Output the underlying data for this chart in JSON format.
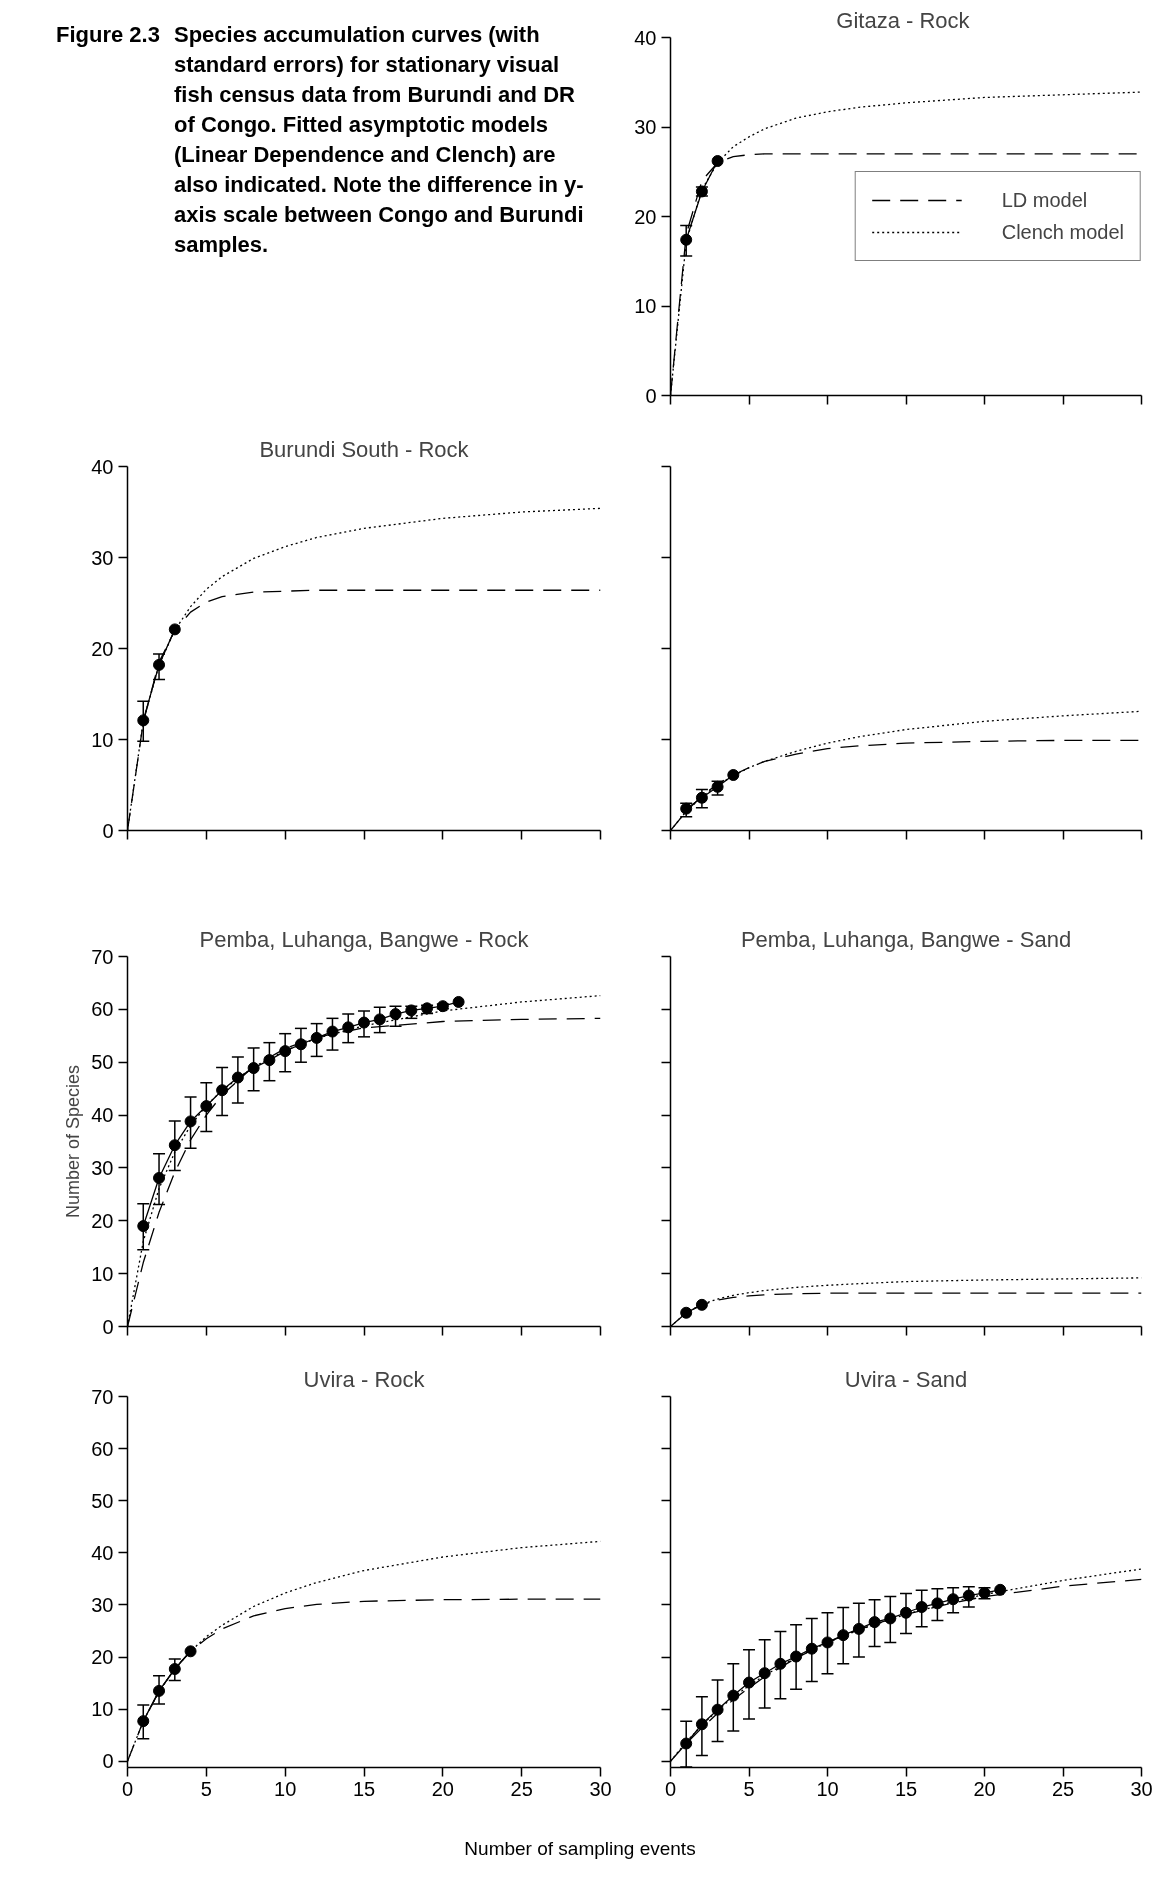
{
  "chart_data": [
    {
      "type": "line",
      "title": "Gitaza -  Rock",
      "annotations": [
        "Figure 2.3",
        "Species accumulation curves (with standard errors) for stationary visual fish census data from Burundi and DR of Congo. Fitted asymptotic models (Linear Dependence and Clench) are also indicated. Note the difference in y-axis scale between Congo and Burundi samples."
      ],
      "xlim": [
        0,
        30
      ],
      "ylim": [
        0,
        40
      ],
      "xticks": [
        0,
        5,
        10,
        15,
        20,
        25,
        30
      ],
      "yticks": [
        0,
        10,
        20,
        30,
        40
      ],
      "tick_labels": "y",
      "grid": false,
      "legend": "right",
      "series": [
        {
          "color": "#000000",
          "marker": "circle",
          "line_style": "solid",
          "x": [
            1,
            2,
            3
          ],
          "values": [
            17.4,
            22.8,
            26.2
          ],
          "errors": [
            [
              15.6,
              19.0
            ],
            [
              22.3,
              23.3
            ],
            null
          ]
        },
        {
          "name": "LD model",
          "color": "#000000",
          "marker": "none",
          "line_style": "dashed",
          "x": [
            0,
            1,
            2,
            3,
            4,
            5,
            6,
            8,
            10,
            12,
            15,
            20,
            25,
            30
          ],
          "values": [
            0,
            18.0,
            24.0,
            26.0,
            26.7,
            26.9,
            27.0,
            27.0,
            27.0,
            27.0,
            27.0,
            27.0,
            27.0,
            27.0
          ]
        },
        {
          "name": "Clench model",
          "color": "#000000",
          "marker": "none",
          "line_style": "dotted",
          "x": [
            0,
            1,
            2,
            3,
            4,
            5,
            6,
            8,
            10,
            12,
            15,
            20,
            25,
            30
          ],
          "values": [
            0,
            17.2,
            23.0,
            26.0,
            27.8,
            28.9,
            29.8,
            31.0,
            31.7,
            32.2,
            32.7,
            33.3,
            33.6,
            33.9
          ]
        }
      ]
    },
    {
      "type": "line",
      "title": "Burundi South - Rock",
      "xlim": [
        0,
        30
      ],
      "ylim": [
        0,
        40
      ],
      "xticks": [
        0,
        5,
        10,
        15,
        20,
        25,
        30
      ],
      "yticks": [
        0,
        10,
        20,
        30,
        40
      ],
      "tick_labels": "y",
      "grid": false,
      "series": [
        {
          "color": "#000000",
          "marker": "circle",
          "line_style": "solid",
          "x": [
            1,
            2,
            3
          ],
          "values": [
            12.1,
            18.2,
            22.1
          ],
          "errors": [
            [
              9.8,
              14.2
            ],
            [
              16.6,
              19.4
            ],
            null
          ]
        },
        {
          "color": "#000000",
          "marker": "none",
          "line_style": "dashed",
          "x": [
            0,
            1,
            2,
            3,
            4,
            5,
            6,
            8,
            10,
            12,
            15,
            20,
            25,
            30
          ],
          "values": [
            0,
            11.9,
            18.5,
            22.0,
            24.0,
            25.1,
            25.7,
            26.2,
            26.3,
            26.4,
            26.4,
            26.4,
            26.4,
            26.4
          ]
        },
        {
          "color": "#000000",
          "marker": "none",
          "line_style": "dotted",
          "x": [
            0,
            1,
            2,
            3,
            4,
            5,
            6,
            8,
            10,
            12,
            15,
            20,
            25,
            30
          ],
          "values": [
            0,
            12.0,
            18.2,
            22.0,
            24.6,
            26.5,
            27.9,
            29.9,
            31.2,
            32.2,
            33.2,
            34.3,
            35.0,
            35.4
          ]
        }
      ]
    },
    {
      "type": "line",
      "xlim": [
        0,
        30
      ],
      "ylim": [
        0,
        40
      ],
      "xticks": [
        0,
        5,
        10,
        15,
        20,
        25,
        30
      ],
      "yticks": [
        0,
        10,
        20,
        30,
        40
      ],
      "tick_labels": false,
      "grid": false,
      "series": [
        {
          "color": "#000000",
          "marker": "circle",
          "line_style": "solid",
          "x": [
            1,
            2,
            3,
            4
          ],
          "values": [
            2.4,
            3.6,
            4.8,
            6.1
          ],
          "errors": [
            [
              1.5,
              3.0
            ],
            [
              2.5,
              4.5
            ],
            [
              3.9,
              5.4
            ],
            null
          ]
        },
        {
          "color": "#000000",
          "marker": "none",
          "line_style": "dashed",
          "x": [
            0,
            1,
            2,
            3,
            4,
            5,
            6,
            8,
            10,
            12,
            15,
            20,
            25,
            30
          ],
          "values": [
            0,
            2.1,
            3.8,
            5.1,
            6.1,
            6.9,
            7.6,
            8.4,
            9.0,
            9.3,
            9.6,
            9.8,
            9.9,
            9.9
          ]
        },
        {
          "color": "#000000",
          "marker": "none",
          "line_style": "dotted",
          "x": [
            0,
            1,
            2,
            3,
            4,
            5,
            6,
            8,
            10,
            12,
            15,
            20,
            25,
            30
          ],
          "values": [
            0,
            2.1,
            3.7,
            5.0,
            6.0,
            6.9,
            7.6,
            8.7,
            9.6,
            10.3,
            11.1,
            12.0,
            12.6,
            13.1
          ]
        }
      ]
    },
    {
      "type": "line",
      "title": "Pemba, Luhanga, Bangwe - Rock",
      "ylabel": "Number of Species",
      "xlim": [
        0,
        30
      ],
      "ylim": [
        0,
        70
      ],
      "xticks": [
        0,
        5,
        10,
        15,
        20,
        25,
        30
      ],
      "yticks": [
        0,
        10,
        20,
        30,
        40,
        50,
        60,
        70
      ],
      "tick_labels": "y",
      "grid": false,
      "series": [
        {
          "color": "#000000",
          "marker": "circle",
          "line_style": "solid",
          "x": [
            1,
            2,
            3,
            4,
            5,
            6,
            7,
            8,
            9,
            10,
            11,
            12,
            13,
            14,
            15,
            16,
            17,
            18,
            19,
            20,
            21
          ],
          "values": [
            19.0,
            28.1,
            34.3,
            38.8,
            41.7,
            44.7,
            47.1,
            48.9,
            50.4,
            52.1,
            53.4,
            54.6,
            55.8,
            56.6,
            57.5,
            58.1,
            59.1,
            59.8,
            60.2,
            60.6,
            61.4
          ],
          "errors": [
            [
              14.5,
              23.2
            ],
            [
              23.1,
              32.7
            ],
            [
              29.5,
              38.9
            ],
            [
              33.7,
              43.4
            ],
            [
              36.9,
              46.1
            ],
            [
              39.9,
              49.0
            ],
            [
              42.3,
              51.0
            ],
            [
              44.6,
              52.7
            ],
            [
              46.5,
              53.7
            ],
            [
              48.2,
              55.4
            ],
            [
              50.0,
              56.4
            ],
            [
              51.1,
              57.3
            ],
            [
              52.3,
              58.3
            ],
            [
              53.7,
              59.1
            ],
            [
              54.8,
              59.7
            ],
            [
              55.6,
              60.4
            ],
            [
              56.8,
              60.6
            ],
            [
              58.3,
              60.6
            ],
            [
              59.2,
              60.8
            ],
            [
              60.1,
              61.0
            ],
            null
          ]
        },
        {
          "color": "#000000",
          "marker": "none",
          "line_style": "dashed",
          "x": [
            0,
            1,
            2,
            3,
            4,
            5,
            6,
            8,
            10,
            12,
            15,
            20,
            25,
            30
          ],
          "values": [
            0,
            12.1,
            21.6,
            29.2,
            35.3,
            40.0,
            43.8,
            49.2,
            52.6,
            54.7,
            56.5,
            57.7,
            58.1,
            58.3
          ]
        },
        {
          "color": "#000000",
          "marker": "none",
          "line_style": "dotted",
          "x": [
            0,
            1,
            2,
            3,
            4,
            5,
            6,
            8,
            10,
            12,
            15,
            20,
            25,
            30
          ],
          "values": [
            0,
            16.1,
            26.1,
            33.0,
            38.0,
            41.8,
            44.7,
            49.1,
            52.2,
            54.5,
            56.9,
            59.7,
            61.4,
            62.6
          ]
        }
      ]
    },
    {
      "type": "line",
      "title": "Pemba, Luhanga, Bangwe - Sand",
      "xlim": [
        0,
        30
      ],
      "ylim": [
        0,
        70
      ],
      "xticks": [
        0,
        5,
        10,
        15,
        20,
        25,
        30
      ],
      "yticks": [
        0,
        10,
        20,
        30,
        40,
        50,
        60,
        70
      ],
      "tick_labels": false,
      "grid": false,
      "series": [
        {
          "color": "#000000",
          "marker": "circle",
          "line_style": "solid",
          "x": [
            1,
            2
          ],
          "values": [
            2.6,
            4.1
          ]
        },
        {
          "color": "#000000",
          "marker": "none",
          "line_style": "dashed",
          "x": [
            0,
            1,
            2,
            3,
            4,
            5,
            6,
            8,
            10,
            12,
            15,
            20,
            25,
            30
          ],
          "values": [
            0,
            2.6,
            4.1,
            5.0,
            5.5,
            5.8,
            6.0,
            6.2,
            6.3,
            6.3,
            6.3,
            6.3,
            6.3,
            6.3
          ]
        },
        {
          "color": "#000000",
          "marker": "none",
          "line_style": "dotted",
          "x": [
            0,
            1,
            2,
            3,
            4,
            5,
            6,
            8,
            10,
            12,
            15,
            20,
            25,
            30
          ],
          "values": [
            0,
            2.6,
            4.2,
            5.2,
            5.9,
            6.4,
            6.8,
            7.4,
            7.8,
            8.1,
            8.5,
            8.8,
            9.0,
            9.2
          ]
        }
      ]
    },
    {
      "type": "line",
      "title": "Uvira - Rock",
      "xlabel": "Number of sampling events",
      "xlim": [
        0,
        30
      ],
      "ylim": [
        -1.2,
        70
      ],
      "xticks": [
        0,
        5,
        10,
        15,
        20,
        25,
        30
      ],
      "yticks": [
        0,
        10,
        20,
        30,
        40,
        50,
        60,
        70
      ],
      "grid": false,
      "series": [
        {
          "color": "#000000",
          "marker": "circle",
          "line_style": "solid",
          "x": [
            1,
            2,
            3,
            4
          ],
          "values": [
            7.7,
            13.5,
            17.7,
            21.1
          ],
          "errors": [
            [
              4.3,
              10.8
            ],
            [
              11.0,
              16.4
            ],
            [
              15.5,
              19.6
            ],
            null
          ]
        },
        {
          "color": "#000000",
          "marker": "none",
          "line_style": "dashed",
          "x": [
            0,
            1,
            2,
            3,
            4,
            5,
            6,
            8,
            10,
            12,
            15,
            20,
            25,
            30
          ],
          "values": [
            0,
            7.7,
            13.4,
            17.8,
            21.1,
            23.5,
            25.4,
            27.9,
            29.3,
            30.1,
            30.7,
            31.0,
            31.1,
            31.1
          ]
        },
        {
          "color": "#000000",
          "marker": "none",
          "line_style": "dotted",
          "x": [
            0,
            1,
            2,
            3,
            4,
            5,
            6,
            8,
            10,
            12,
            15,
            20,
            25,
            30
          ],
          "values": [
            0,
            7.7,
            13.4,
            17.7,
            21.1,
            23.9,
            26.1,
            29.7,
            32.3,
            34.3,
            36.6,
            39.2,
            41.0,
            42.2
          ]
        }
      ]
    },
    {
      "type": "line",
      "title": "Uvira - Sand",
      "xlim": [
        0,
        30
      ],
      "ylim": [
        -1.2,
        70
      ],
      "xticks": [
        0,
        5,
        10,
        15,
        20,
        25,
        30
      ],
      "yticks": [
        0,
        10,
        20,
        30,
        40,
        50,
        60,
        70
      ],
      "tick_labels": "x",
      "grid": false,
      "series": [
        {
          "color": "#000000",
          "marker": "circle",
          "line_style": "solid",
          "x": [
            1,
            2,
            3,
            4,
            5,
            6,
            7,
            8,
            9,
            10,
            11,
            12,
            13,
            14,
            15,
            16,
            17,
            18,
            19,
            20,
            21
          ],
          "values": [
            3.4,
            7.1,
            9.9,
            12.6,
            15.1,
            16.9,
            18.7,
            20.1,
            21.6,
            22.8,
            24.2,
            25.4,
            26.7,
            27.4,
            28.5,
            29.6,
            30.3,
            31.1,
            31.8,
            32.3,
            32.9
          ],
          "errors": [
            [
              -1.1,
              7.7
            ],
            [
              1.1,
              12.4
            ],
            [
              3.8,
              15.6
            ],
            [
              5.8,
              18.7
            ],
            [
              8.1,
              21.4
            ],
            [
              10.2,
              23.3
            ],
            [
              12.0,
              24.9
            ],
            [
              13.8,
              26.2
            ],
            [
              15.3,
              27.4
            ],
            [
              16.8,
              28.5
            ],
            [
              18.7,
              29.5
            ],
            [
              20.0,
              30.3
            ],
            [
              22.0,
              31.0
            ],
            [
              22.8,
              31.6
            ],
            [
              24.5,
              32.2
            ],
            [
              25.8,
              32.8
            ],
            [
              27.0,
              33.1
            ],
            [
              28.5,
              33.3
            ],
            [
              29.6,
              33.5
            ],
            [
              31.2,
              33.3
            ],
            null
          ]
        },
        {
          "color": "#000000",
          "marker": "none",
          "line_style": "dashed",
          "x": [
            0,
            1,
            2,
            3,
            4,
            5,
            6,
            8,
            10,
            12,
            15,
            18,
            20,
            25,
            30
          ],
          "values": [
            0,
            3.4,
            6.4,
            9.2,
            11.8,
            14.1,
            16.2,
            19.8,
            22.8,
            25.3,
            28.2,
            30.4,
            31.6,
            33.6,
            34.9
          ]
        },
        {
          "color": "#000000",
          "marker": "none",
          "line_style": "dotted",
          "x": [
            0,
            1,
            2,
            3,
            4,
            5,
            6,
            8,
            10,
            12,
            15,
            18,
            20,
            25,
            30
          ],
          "values": [
            0,
            3.7,
            6.9,
            9.8,
            12.3,
            14.5,
            16.5,
            19.9,
            22.8,
            25.2,
            28.2,
            30.6,
            32.0,
            34.7,
            36.9
          ]
        }
      ]
    }
  ]
}
